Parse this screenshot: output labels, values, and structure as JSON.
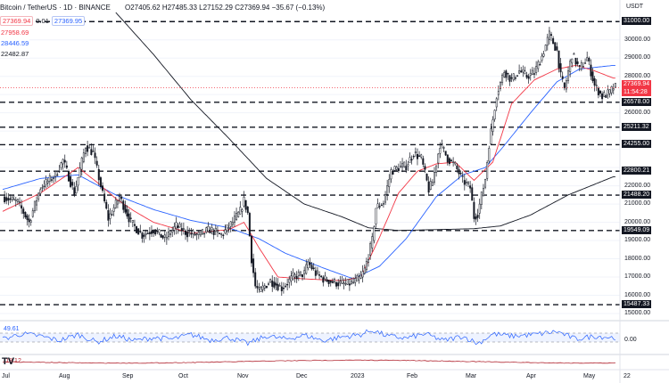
{
  "header": {
    "symbol_label": "Bitcoin / TetherUS · 1D · BINANCE",
    "ohlc_label": "O27405.62 H27485.33 L27152.29 C27369.94 −35.67 (−0.13%)",
    "bid": "27369.94",
    "spread": "0.01",
    "ask": "27369.95"
  },
  "indicator_values": [
    "27958.69",
    "28446.59",
    "22482.87"
  ],
  "currency": "USDT",
  "colors": {
    "up": "#26a69a",
    "down": "#f23645",
    "candle_up": "#ffffff",
    "candle_down": "#131722",
    "ma20": "#f23645",
    "ma50": "#2962ff",
    "ma200": "#131722",
    "rsi_line": "#2962ff",
    "lower_line": "#b22833",
    "level_line": "#131722"
  },
  "chart_data": {
    "type": "candlestick",
    "title": "Bitcoin / TetherUS · 1D · BINANCE",
    "ylim": [
      15000,
      31500
    ],
    "y_ticks": [
      15000,
      16000,
      17000,
      18000,
      19000,
      20000,
      21000,
      22000,
      23000,
      24000,
      25000,
      26000,
      27000,
      28000,
      29000,
      30000
    ],
    "x_ticks": [
      "Jul",
      "Aug",
      "Sep",
      "Oct",
      "Nov",
      "Dec",
      "2023",
      "Feb",
      "Mar",
      "Apr",
      "May",
      "22"
    ],
    "levels": [
      31000.0,
      26578.0,
      25211.32,
      24255.0,
      22800.21,
      21488.2,
      19549.09,
      15487.33
    ],
    "current_price": 27369.94,
    "current_label": "27369.94",
    "countdown": "11:54:28",
    "anchors": [
      [
        0,
        21400
      ],
      [
        8,
        21100
      ],
      [
        14,
        20000
      ],
      [
        20,
        21900
      ],
      [
        28,
        22600
      ],
      [
        32,
        23400
      ],
      [
        38,
        21600
      ],
      [
        44,
        24200
      ],
      [
        48,
        23800
      ],
      [
        56,
        20200
      ],
      [
        62,
        21400
      ],
      [
        68,
        20000
      ],
      [
        74,
        19300
      ],
      [
        80,
        19600
      ],
      [
        86,
        19100
      ],
      [
        92,
        19800
      ],
      [
        98,
        19400
      ],
      [
        104,
        19300
      ],
      [
        110,
        19600
      ],
      [
        116,
        19300
      ],
      [
        122,
        20000
      ],
      [
        126,
        20600
      ],
      [
        128,
        21200
      ],
      [
        130,
        20500
      ],
      [
        132,
        18000
      ],
      [
        134,
        16500
      ],
      [
        136,
        16200
      ],
      [
        142,
        16800
      ],
      [
        148,
        16400
      ],
      [
        154,
        17000
      ],
      [
        160,
        17200
      ],
      [
        162,
        17800
      ],
      [
        166,
        17200
      ],
      [
        170,
        16900
      ],
      [
        176,
        16700
      ],
      [
        182,
        16600
      ],
      [
        186,
        16700
      ],
      [
        190,
        17000
      ],
      [
        192,
        17400
      ],
      [
        196,
        19000
      ],
      [
        198,
        20800
      ],
      [
        202,
        21100
      ],
      [
        206,
        22800
      ],
      [
        210,
        23000
      ],
      [
        214,
        23100
      ],
      [
        218,
        23800
      ],
      [
        222,
        23500
      ],
      [
        226,
        21800
      ],
      [
        228,
        22200
      ],
      [
        232,
        24300
      ],
      [
        236,
        23500
      ],
      [
        240,
        23100
      ],
      [
        244,
        22300
      ],
      [
        248,
        21900
      ],
      [
        250,
        20300
      ],
      [
        252,
        20500
      ],
      [
        256,
        22400
      ],
      [
        258,
        24300
      ],
      [
        262,
        27000
      ],
      [
        266,
        28300
      ],
      [
        270,
        27800
      ],
      [
        274,
        28300
      ],
      [
        278,
        28000
      ],
      [
        282,
        28200
      ],
      [
        286,
        29100
      ],
      [
        290,
        30300
      ],
      [
        294,
        29400
      ],
      [
        296,
        28000
      ],
      [
        298,
        27300
      ],
      [
        302,
        29200
      ],
      [
        306,
        28400
      ],
      [
        310,
        29000
      ],
      [
        314,
        27500
      ],
      [
        318,
        26900
      ],
      [
        322,
        27100
      ],
      [
        324,
        27400
      ]
    ],
    "ma20_anchors": [
      [
        0,
        20600
      ],
      [
        20,
        21600
      ],
      [
        40,
        23000
      ],
      [
        50,
        22200
      ],
      [
        60,
        21300
      ],
      [
        70,
        20600
      ],
      [
        80,
        20000
      ],
      [
        100,
        19400
      ],
      [
        120,
        19600
      ],
      [
        128,
        20000
      ],
      [
        136,
        18600
      ],
      [
        146,
        17000
      ],
      [
        160,
        16900
      ],
      [
        180,
        16800
      ],
      [
        190,
        17000
      ],
      [
        200,
        19200
      ],
      [
        210,
        21600
      ],
      [
        220,
        22800
      ],
      [
        230,
        23200
      ],
      [
        240,
        23300
      ],
      [
        250,
        22300
      ],
      [
        260,
        23300
      ],
      [
        270,
        26500
      ],
      [
        282,
        27800
      ],
      [
        294,
        28400
      ],
      [
        304,
        28600
      ],
      [
        314,
        28300
      ],
      [
        324,
        27900
      ]
    ],
    "ma50_anchors": [
      [
        0,
        21800
      ],
      [
        20,
        22400
      ],
      [
        30,
        22500
      ],
      [
        40,
        22600
      ],
      [
        60,
        21500
      ],
      [
        80,
        20700
      ],
      [
        100,
        20100
      ],
      [
        120,
        19700
      ],
      [
        136,
        19100
      ],
      [
        150,
        18300
      ],
      [
        170,
        17500
      ],
      [
        186,
        16900
      ],
      [
        200,
        17600
      ],
      [
        214,
        19100
      ],
      [
        230,
        21400
      ],
      [
        244,
        22600
      ],
      [
        256,
        23000
      ],
      [
        266,
        24200
      ],
      [
        280,
        26000
      ],
      [
        294,
        27700
      ],
      [
        306,
        28400
      ],
      [
        324,
        28600
      ]
    ],
    "ma200_anchors": [
      [
        60,
        31500
      ],
      [
        80,
        29200
      ],
      [
        100,
        26700
      ],
      [
        120,
        24600
      ],
      [
        140,
        22400
      ],
      [
        160,
        21000
      ],
      [
        180,
        20300
      ],
      [
        194,
        19700
      ],
      [
        210,
        19550
      ],
      [
        230,
        19600
      ],
      [
        250,
        19650
      ],
      [
        264,
        19800
      ],
      [
        280,
        20400
      ],
      [
        300,
        21500
      ],
      [
        324,
        22500
      ]
    ],
    "rsi": {
      "top_label": "49.61",
      "bottom_label": "-18.12",
      "right_label": "0.00",
      "anchors": [
        [
          0,
          0.45
        ],
        [
          10,
          0.62
        ],
        [
          20,
          0.55
        ],
        [
          30,
          0.4
        ],
        [
          40,
          0.6
        ],
        [
          50,
          0.35
        ],
        [
          60,
          0.55
        ],
        [
          70,
          0.4
        ],
        [
          80,
          0.5
        ],
        [
          90,
          0.45
        ],
        [
          100,
          0.6
        ],
        [
          110,
          0.42
        ],
        [
          120,
          0.5
        ],
        [
          130,
          0.3
        ],
        [
          140,
          0.55
        ],
        [
          150,
          0.45
        ],
        [
          160,
          0.58
        ],
        [
          170,
          0.4
        ],
        [
          180,
          0.52
        ],
        [
          190,
          0.6
        ],
        [
          196,
          0.75
        ],
        [
          204,
          0.55
        ],
        [
          214,
          0.48
        ],
        [
          224,
          0.62
        ],
        [
          234,
          0.4
        ],
        [
          244,
          0.55
        ],
        [
          252,
          0.3
        ],
        [
          260,
          0.62
        ],
        [
          270,
          0.55
        ],
        [
          282,
          0.6
        ],
        [
          294,
          0.7
        ],
        [
          304,
          0.45
        ],
        [
          314,
          0.55
        ],
        [
          324,
          0.5
        ]
      ]
    }
  }
}
